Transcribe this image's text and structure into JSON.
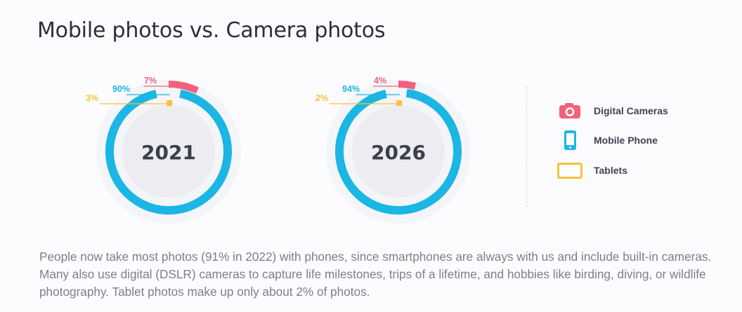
{
  "title": "Mobile photos vs. Camera photos",
  "legend": {
    "cameras": {
      "label": "Digital Cameras",
      "icon": "camera-icon",
      "color": "#f2607c"
    },
    "mobile": {
      "label": "Mobile Phone",
      "icon": "mobile-phone-icon",
      "color": "#1bb6e4"
    },
    "tablets": {
      "label": "Tablets",
      "icon": "tablet-icon",
      "color": "#f6c23e"
    }
  },
  "caption": "People now take most photos (91% in 2022) with phones, since smartphones are always with us and include built-in cameras. Many also use digital (DSLR) cameras to capture life milestones, trips of a lifetime, and hobbies like birding, diving, or wildlife photography. Tablet photos make up only about 2% of photos.",
  "chart_data": [
    {
      "type": "pie",
      "center_label": "2021",
      "series": [
        {
          "name": "Digital Cameras",
          "value": 7,
          "label": "7%",
          "color": "#f2607c"
        },
        {
          "name": "Mobile Phone",
          "value": 90,
          "label": "90%",
          "color": "#1bb6e4"
        },
        {
          "name": "Tablets",
          "value": 3,
          "label": "3%",
          "color": "#f6c23e"
        }
      ]
    },
    {
      "type": "pie",
      "center_label": "2026",
      "series": [
        {
          "name": "Digital Cameras",
          "value": 4,
          "label": "4%",
          "color": "#f2607c"
        },
        {
          "name": "Mobile Phone",
          "value": 94,
          "label": "94%",
          "color": "#1bb6e4"
        },
        {
          "name": "Tablets",
          "value": 2,
          "label": "2%",
          "color": "#f6c23e"
        }
      ]
    }
  ]
}
